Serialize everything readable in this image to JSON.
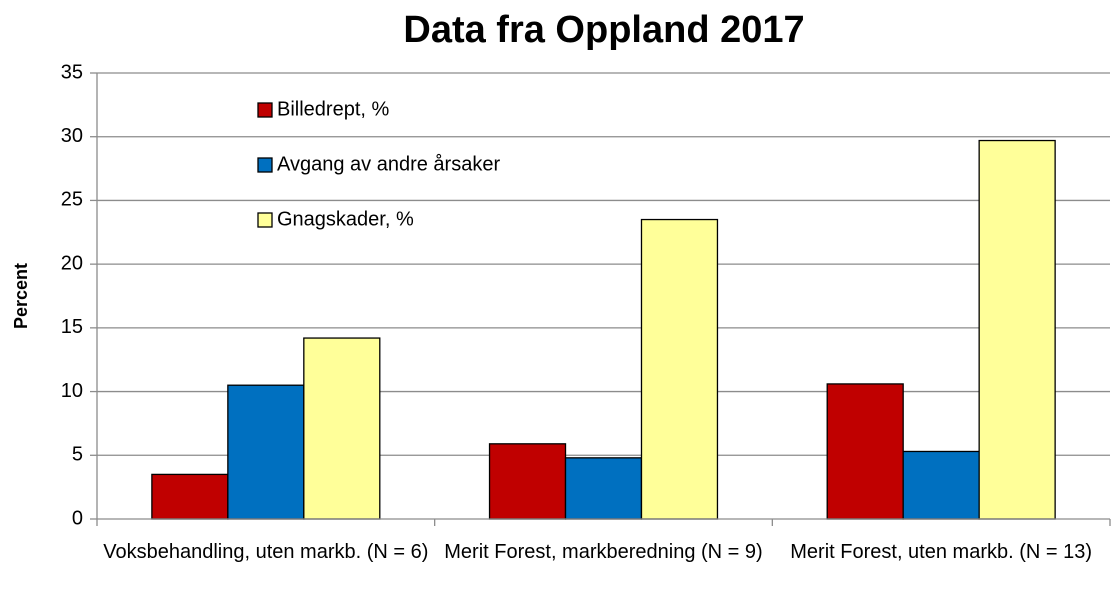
{
  "chart_data": {
    "type": "bar",
    "title": "Data fra Oppland 2017",
    "y_label": "Percent",
    "categories": [
      "Voksbehandling, uten markb. (N = 6)",
      "Merit Forest, markberedning (N = 9)",
      "Merit Forest, uten markb. (N = 13)"
    ],
    "series": [
      {
        "name": "Billedrept, %",
        "color": "#c00000",
        "values": [
          3.5,
          5.9,
          10.6
        ]
      },
      {
        "name": "Avgang av andre årsaker",
        "color": "#0070c0",
        "values": [
          10.5,
          4.8,
          5.3
        ]
      },
      {
        "name": "Gnagskader, %",
        "color": "#ffff99",
        "values": [
          14.2,
          23.5,
          29.7
        ]
      }
    ],
    "ylim": [
      0,
      35
    ],
    "yticks": [
      0,
      5,
      10,
      15,
      20,
      25,
      30,
      35
    ],
    "grid": true,
    "legend": "top-left"
  }
}
